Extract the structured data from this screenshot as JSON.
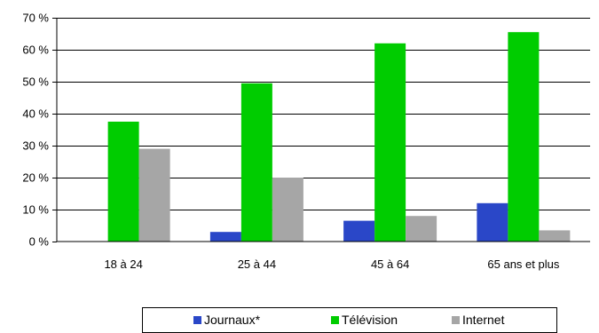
{
  "chart_data": {
    "type": "bar",
    "categories": [
      "18 à 24",
      "25 à 44",
      "45 à 64",
      "65 ans et plus"
    ],
    "series": [
      {
        "name": "Journaux*",
        "values": [
          0,
          3,
          6.5,
          12
        ],
        "color": "#2a47c8"
      },
      {
        "name": "Télévision",
        "values": [
          37.5,
          49.5,
          62,
          65.5
        ],
        "color": "#00cc00"
      },
      {
        "name": "Internet",
        "values": [
          29,
          20,
          8,
          3.5
        ],
        "color": "#a6a6a6"
      }
    ],
    "ylim": [
      0,
      70
    ],
    "yticks": [
      0,
      10,
      20,
      30,
      40,
      50,
      60,
      70
    ],
    "ytick_labels": [
      "0 %",
      "10 %",
      "20 %",
      "30 %",
      "40 %",
      "50 %",
      "60 %",
      "70 %"
    ],
    "grid": true,
    "legend_position": "bottom"
  }
}
